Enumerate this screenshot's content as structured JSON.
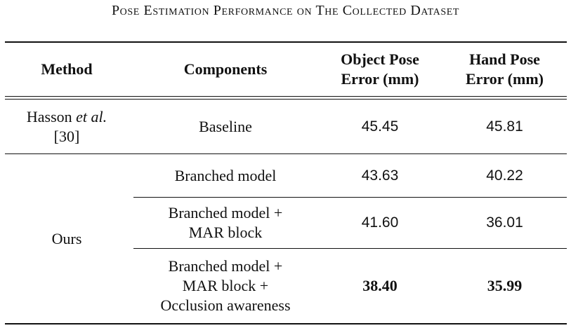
{
  "caption": "Pose Estimation Performance on The Collected Dataset",
  "header": {
    "method": "Method",
    "components": "Components",
    "object_line1": "Object Pose",
    "object_line2": "Error (mm)",
    "hand_line1": "Hand Pose",
    "hand_line2": "Error (mm)"
  },
  "rows": [
    {
      "method_name": "Hasson",
      "method_etal": "et al.",
      "method_ref": "[30]",
      "components": [
        "Baseline"
      ],
      "object_error": "45.45",
      "hand_error": "45.81"
    },
    {
      "method": "Ours",
      "components": [
        "Branched model"
      ],
      "object_error": "43.63",
      "hand_error": "40.22"
    },
    {
      "method": "Ours",
      "components": [
        "Branched model +",
        "MAR block"
      ],
      "object_error": "41.60",
      "hand_error": "36.01"
    },
    {
      "method": "Ours",
      "components": [
        "Branched model +",
        "MAR block +",
        "Occlusion awareness"
      ],
      "object_error": "38.40",
      "hand_error": "35.99"
    }
  ],
  "ours_label": "Ours"
}
